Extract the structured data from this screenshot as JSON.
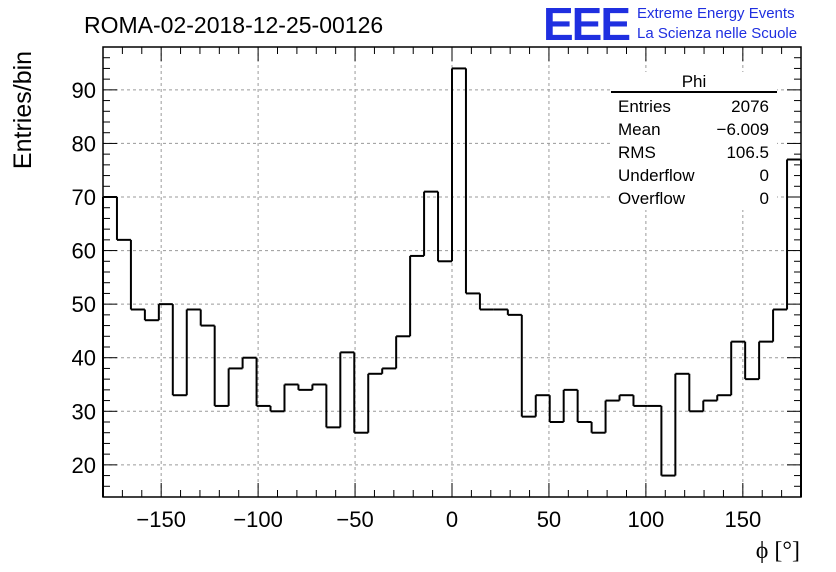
{
  "title": "ROMA-02-2018-12-25-00126",
  "logo": {
    "mark": "EEE",
    "line1": "Extreme Energy Events",
    "line2": "La Scienza nelle Scuole",
    "color": "#1f2fe0"
  },
  "stats": {
    "name": "Phi",
    "rows": [
      {
        "label": "Entries",
        "value": "2076"
      },
      {
        "label": "Mean",
        "value": "−6.009"
      },
      {
        "label": "RMS",
        "value": "106.5"
      },
      {
        "label": "Underflow",
        "value": "0"
      },
      {
        "label": "Overflow",
        "value": "0"
      }
    ]
  },
  "chart_data": {
    "type": "bar",
    "style": "step-histogram",
    "xlabel": "ϕ [°]",
    "ylabel": "Entries/bin",
    "xlim": [
      -180,
      180
    ],
    "ylim": [
      14,
      98
    ],
    "bin_width": 7.2,
    "bin_edges_start": -180,
    "values": [
      70,
      62,
      49,
      47,
      50,
      33,
      49,
      46,
      31,
      38,
      40,
      31,
      30,
      35,
      34,
      35,
      27,
      41,
      26,
      37,
      38,
      44,
      59,
      71,
      58,
      94,
      52,
      49,
      49,
      48,
      29,
      33,
      28,
      34,
      28,
      26,
      32,
      33,
      31,
      31,
      18,
      37,
      30,
      32,
      33,
      43,
      36,
      43,
      49,
      77
    ],
    "xticks": [
      -150,
      -100,
      -50,
      0,
      50,
      100,
      150
    ],
    "xtick_labels": [
      "−150",
      "−100",
      "−50",
      "0",
      "50",
      "100",
      "150"
    ],
    "yticks": [
      20,
      30,
      40,
      50,
      60,
      70,
      80,
      90
    ],
    "ytick_labels": [
      "20",
      "30",
      "40",
      "50",
      "60",
      "70",
      "80",
      "90"
    ],
    "grid": true,
    "line_color": "#000000"
  }
}
